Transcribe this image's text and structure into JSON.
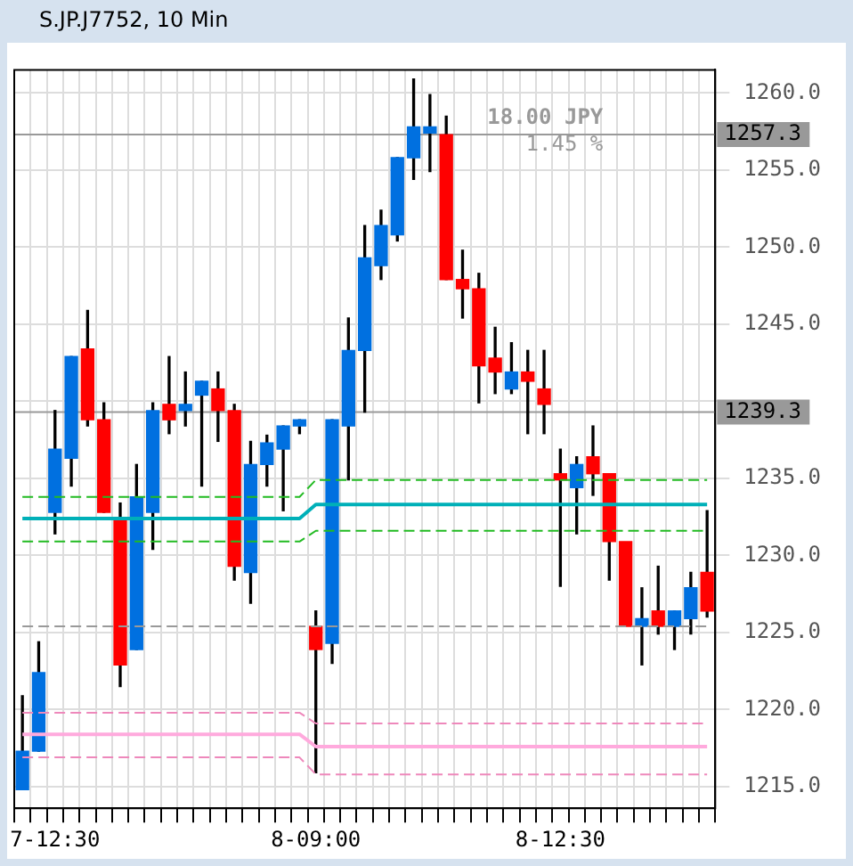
{
  "chart_data": {
    "type": "candlestick",
    "title": "S.JP.J7752, 10 Min",
    "categories": [
      null,
      null,
      "7-12:30",
      null,
      null,
      null,
      null,
      null,
      null,
      null,
      null,
      null,
      null,
      null,
      null,
      null,
      null,
      null,
      "8-09:00",
      null,
      null,
      null,
      null,
      null,
      null,
      null,
      null,
      null,
      null,
      null,
      null,
      null,
      null,
      "8-12:30",
      null,
      null,
      null,
      null,
      null,
      null,
      null,
      null,
      null
    ],
    "ohlc": [
      [
        1214.8,
        1220.9,
        1214.8,
        1217.3
      ],
      [
        1217.3,
        1224.4,
        1217.3,
        1222.4
      ],
      [
        1232.8,
        1239.4,
        1231.4,
        1236.9
      ],
      [
        1236.3,
        1242.9,
        1234.5,
        1242.9
      ],
      [
        1243.4,
        1245.9,
        1238.4,
        1238.8
      ],
      [
        1238.8,
        1239.9,
        1232.8,
        1232.8
      ],
      [
        1232.4,
        1233.4,
        1221.5,
        1222.9
      ],
      [
        1223.9,
        1235.9,
        1223.9,
        1233.8
      ],
      [
        1232.8,
        1239.9,
        1230.4,
        1239.4
      ],
      [
        1239.8,
        1242.9,
        1237.9,
        1238.8
      ],
      [
        1239.4,
        1241.9,
        1238.4,
        1239.8
      ],
      [
        1240.4,
        1241.3,
        1234.5,
        1241.3
      ],
      [
        1240.8,
        1241.9,
        1237.4,
        1239.4
      ],
      [
        1239.4,
        1239.8,
        1228.4,
        1229.3
      ],
      [
        1228.9,
        1237.4,
        1226.9,
        1235.9
      ],
      [
        1235.9,
        1237.8,
        1234.5,
        1237.3
      ],
      [
        1236.9,
        1238.4,
        1232.9,
        1238.4
      ],
      [
        1238.4,
        1238.8,
        1237.9,
        1238.8
      ],
      [
        1225.4,
        1226.4,
        1215.9,
        1223.9
      ],
      [
        1224.3,
        1238.8,
        1223.0,
        1238.8
      ],
      [
        1238.4,
        1245.4,
        1234.9,
        1243.3
      ],
      [
        1243.3,
        1251.4,
        1239.3,
        1249.3
      ],
      [
        1248.8,
        1252.4,
        1247.9,
        1251.4
      ],
      [
        1250.8,
        1255.8,
        1250.4,
        1255.8
      ],
      [
        1255.8,
        1260.9,
        1254.4,
        1257.8
      ],
      [
        1257.4,
        1259.9,
        1254.9,
        1257.8
      ],
      [
        1257.3,
        1258.5,
        1247.9,
        1247.9
      ],
      [
        1247.9,
        1249.8,
        1245.4,
        1247.3
      ],
      [
        1247.3,
        1248.3,
        1239.9,
        1242.3
      ],
      [
        1242.8,
        1244.8,
        1240.5,
        1241.9
      ],
      [
        1240.8,
        1243.8,
        1240.5,
        1241.9
      ],
      [
        1241.9,
        1243.3,
        1237.9,
        1241.3
      ],
      [
        1240.8,
        1243.3,
        1237.9,
        1239.8
      ],
      [
        1235.3,
        1236.9,
        1228.0,
        1234.9
      ],
      [
        1234.4,
        1236.4,
        1231.4,
        1235.9
      ],
      [
        1236.4,
        1238.4,
        1233.9,
        1235.3
      ],
      [
        1235.3,
        1235.3,
        1228.4,
        1230.9
      ],
      [
        1230.9,
        1230.9,
        1225.4,
        1225.4
      ],
      [
        1225.4,
        1227.9,
        1222.9,
        1225.9
      ],
      [
        1226.4,
        1229.3,
        1224.9,
        1225.4
      ],
      [
        1225.4,
        1226.4,
        1223.9,
        1226.4
      ],
      [
        1225.9,
        1228.9,
        1224.9,
        1227.9
      ],
      [
        1228.9,
        1232.9,
        1226.0,
        1226.4
      ]
    ],
    "colors": [
      "#0070e0",
      "#0070e0",
      "#0070e0",
      "#0070e0",
      "#ff0000",
      "#ff0000",
      "#ff0000",
      "#0070e0",
      "#0070e0",
      "#ff0000",
      "#0070e0",
      "#0070e0",
      "#ff0000",
      "#ff0000",
      "#0070e0",
      "#0070e0",
      "#0070e0",
      "#0070e0",
      "#ff0000",
      "#0070e0",
      "#0070e0",
      "#0070e0",
      "#0070e0",
      "#0070e0",
      "#0070e0",
      "#0070e0",
      "#ff0000",
      "#ff0000",
      "#ff0000",
      "#ff0000",
      "#0070e0",
      "#ff0000",
      "#ff0000",
      "#ff0000",
      "#0070e0",
      "#ff0000",
      "#ff0000",
      "#ff0000",
      "#0070e0",
      "#ff0000",
      "#0070e0",
      "#0070e0",
      "#ff0000"
    ],
    "series": [
      {
        "type": "line",
        "color": "#22bb22",
        "line_style": "dashed",
        "values": [
          1233.8,
          1233.8,
          1233.8,
          1233.8,
          1233.8,
          1233.8,
          1233.8,
          1233.8,
          1233.8,
          1233.8,
          1233.8,
          1233.8,
          1233.8,
          1233.8,
          1233.8,
          1233.8,
          1233.8,
          1233.8,
          1234.9,
          1234.9,
          1234.9,
          1234.9,
          1234.9,
          1234.9,
          1234.9,
          1234.9,
          1234.9,
          1234.9,
          1234.9,
          1234.9,
          1234.9,
          1234.9,
          1234.9,
          1234.9,
          1234.9,
          1234.9,
          1234.9,
          1234.9,
          1234.9,
          1234.9,
          1234.9,
          1234.9,
          1234.9
        ]
      },
      {
        "type": "line",
        "color": "#00b0b8",
        "line_style": "solid",
        "values": [
          1232.4,
          1232.4,
          1232.4,
          1232.4,
          1232.4,
          1232.4,
          1232.4,
          1232.4,
          1232.4,
          1232.4,
          1232.4,
          1232.4,
          1232.4,
          1232.4,
          1232.4,
          1232.4,
          1232.4,
          1232.4,
          1233.3,
          1233.3,
          1233.3,
          1233.3,
          1233.3,
          1233.3,
          1233.3,
          1233.3,
          1233.3,
          1233.3,
          1233.3,
          1233.3,
          1233.3,
          1233.3,
          1233.3,
          1233.3,
          1233.3,
          1233.3,
          1233.3,
          1233.3,
          1233.3,
          1233.3,
          1233.3,
          1233.3,
          1233.3
        ]
      },
      {
        "type": "line",
        "color": "#22bb22",
        "line_style": "dashed",
        "values": [
          1230.9,
          1230.9,
          1230.9,
          1230.9,
          1230.9,
          1230.9,
          1230.9,
          1230.9,
          1230.9,
          1230.9,
          1230.9,
          1230.9,
          1230.9,
          1230.9,
          1230.9,
          1230.9,
          1230.9,
          1230.9,
          1231.6,
          1231.6,
          1231.6,
          1231.6,
          1231.6,
          1231.6,
          1231.6,
          1231.6,
          1231.6,
          1231.6,
          1231.6,
          1231.6,
          1231.6,
          1231.6,
          1231.6,
          1231.6,
          1231.6,
          1231.6,
          1231.6,
          1231.6,
          1231.6,
          1231.6,
          1231.6,
          1231.6,
          1231.6
        ]
      },
      {
        "type": "line",
        "color": "#999999",
        "line_style": "dashed",
        "values": [
          1225.4,
          1225.4,
          1225.4,
          1225.4,
          1225.4,
          1225.4,
          1225.4,
          1225.4,
          1225.4,
          1225.4,
          1225.4,
          1225.4,
          1225.4,
          1225.4,
          1225.4,
          1225.4,
          1225.4,
          1225.4,
          1225.4,
          1225.4,
          1225.4,
          1225.4,
          1225.4,
          1225.4,
          1225.4,
          1225.4,
          1225.4,
          1225.4,
          1225.4,
          1225.4,
          1225.4,
          1225.4,
          1225.4,
          1225.4,
          1225.4,
          1225.4,
          1225.4,
          1225.4,
          1225.4,
          1225.4,
          1225.4,
          1225.4,
          1225.4
        ]
      },
      {
        "type": "line",
        "color": "#ee88bb",
        "line_style": "dashed",
        "values": [
          1219.8,
          1219.8,
          1219.8,
          1219.8,
          1219.8,
          1219.8,
          1219.8,
          1219.8,
          1219.8,
          1219.8,
          1219.8,
          1219.8,
          1219.8,
          1219.8,
          1219.8,
          1219.8,
          1219.8,
          1219.8,
          1219.1,
          1219.1,
          1219.1,
          1219.1,
          1219.1,
          1219.1,
          1219.1,
          1219.1,
          1219.1,
          1219.1,
          1219.1,
          1219.1,
          1219.1,
          1219.1,
          1219.1,
          1219.1,
          1219.1,
          1219.1,
          1219.1,
          1219.1,
          1219.1,
          1219.1,
          1219.1,
          1219.1,
          1219.1
        ]
      },
      {
        "type": "line",
        "color": "#ffaadd",
        "line_style": "solid",
        "values": [
          1218.4,
          1218.4,
          1218.4,
          1218.4,
          1218.4,
          1218.4,
          1218.4,
          1218.4,
          1218.4,
          1218.4,
          1218.4,
          1218.4,
          1218.4,
          1218.4,
          1218.4,
          1218.4,
          1218.4,
          1218.4,
          1217.6,
          1217.6,
          1217.6,
          1217.6,
          1217.6,
          1217.6,
          1217.6,
          1217.6,
          1217.6,
          1217.6,
          1217.6,
          1217.6,
          1217.6,
          1217.6,
          1217.6,
          1217.6,
          1217.6,
          1217.6,
          1217.6,
          1217.6,
          1217.6,
          1217.6,
          1217.6,
          1217.6,
          1217.6
        ]
      },
      {
        "type": "line",
        "color": "#ee88bb",
        "line_style": "dashed",
        "values": [
          1216.9,
          1216.9,
          1216.9,
          1216.9,
          1216.9,
          1216.9,
          1216.9,
          1216.9,
          1216.9,
          1216.9,
          1216.9,
          1216.9,
          1216.9,
          1216.9,
          1216.9,
          1216.9,
          1216.9,
          1216.9,
          1215.8,
          1215.8,
          1215.8,
          1215.8,
          1215.8,
          1215.8,
          1215.8,
          1215.8,
          1215.8,
          1215.8,
          1215.8,
          1215.8,
          1215.8,
          1215.8,
          1215.8,
          1215.8,
          1215.8,
          1215.8,
          1215.8,
          1215.8,
          1215.8,
          1215.8,
          1215.8,
          1215.8,
          1215.8
        ]
      }
    ],
    "ref_lines": [
      {
        "axis": "y",
        "value": 1257.3,
        "label": "1257.3",
        "color": "#999999"
      },
      {
        "axis": "y",
        "value": 1239.3,
        "label": "1239.3",
        "color": "#999999"
      }
    ],
    "annotations": [
      "18.00 JPY",
      "1.45 %"
    ],
    "ylim": [
      1213.6,
      1261.5
    ],
    "yticks": [
      {
        "value": 1215,
        "label": "1215.0"
      },
      {
        "value": 1220,
        "label": "1220.0"
      },
      {
        "value": 1225,
        "label": "1225.0"
      },
      {
        "value": 1230,
        "label": "1230.0"
      },
      {
        "value": 1235,
        "label": "1235.0"
      },
      {
        "value": 1240,
        "label": null
      },
      {
        "value": 1245,
        "label": "1245.0"
      },
      {
        "value": 1250,
        "label": "1250.0"
      },
      {
        "value": 1255,
        "label": "1255.0"
      },
      {
        "value": 1260,
        "label": "1260.0"
      }
    ],
    "grid": true,
    "legend": false
  }
}
